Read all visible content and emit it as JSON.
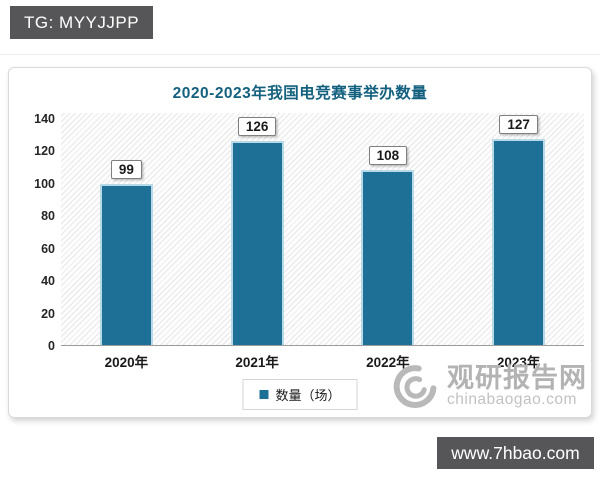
{
  "badges": {
    "tg": "TG: MYYJJPP",
    "site": "www.7hbao.com"
  },
  "chart_data": {
    "type": "bar",
    "title": "2020-2023年我国电竞赛事举办数量",
    "categories": [
      "2020年",
      "2021年",
      "2022年",
      "2023年"
    ],
    "values": [
      99,
      126,
      108,
      127
    ],
    "series_name": "数量（场）",
    "xlabel": "",
    "ylabel": "",
    "ylim": [
      0,
      140
    ],
    "ytick_step": 20,
    "grid": false,
    "legend_position": "bottom",
    "bar_color": "#1e7096",
    "bar_edge_color": "#b7d9e8",
    "title_color": "#14617f"
  },
  "watermark": {
    "name": "观研报告网",
    "domain": "chinabaogao.com"
  }
}
